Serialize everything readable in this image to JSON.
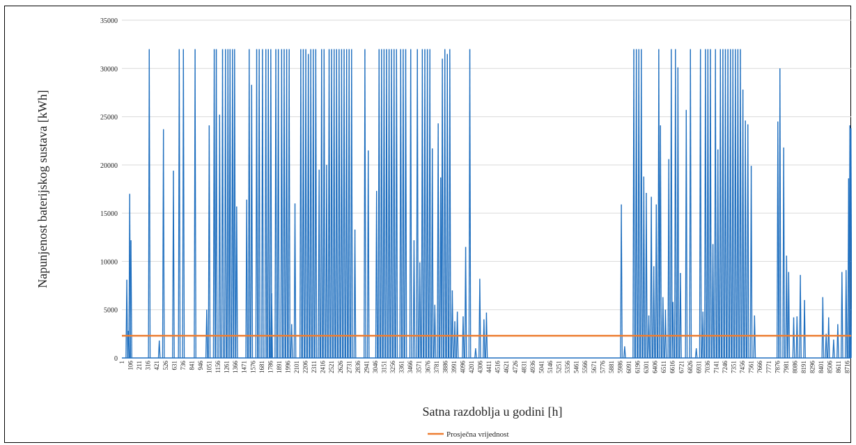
{
  "chart_data": {
    "type": "line",
    "ylabel": "Napunjenost baterijskog sustava [kWh]",
    "xlabel": "Satna razdoblja u godini [h]",
    "ylim": [
      0,
      35000
    ],
    "yticks": [
      0,
      5000,
      10000,
      15000,
      20000,
      25000,
      30000,
      35000
    ],
    "xlim": [
      1,
      8760
    ],
    "xticks": [
      1,
      106,
      211,
      316,
      421,
      526,
      631,
      736,
      841,
      946,
      1051,
      1156,
      1261,
      1366,
      1471,
      1576,
      1681,
      1786,
      1891,
      1996,
      2101,
      2206,
      2311,
      2416,
      2521,
      2626,
      2731,
      2836,
      2941,
      3046,
      3151,
      3256,
      3361,
      3466,
      3571,
      3676,
      3781,
      3886,
      3991,
      4096,
      4201,
      4306,
      4411,
      4516,
      4621,
      4726,
      4831,
      4936,
      5041,
      5146,
      5251,
      5356,
      5461,
      5566,
      5671,
      5776,
      5881,
      5986,
      6091,
      6196,
      6301,
      6406,
      6511,
      6616,
      6721,
      6826,
      6931,
      7036,
      7141,
      7246,
      7351,
      7456,
      7561,
      7666,
      7771,
      7876,
      7981,
      8086,
      8191,
      8296,
      8401,
      8506,
      8611,
      8716
    ],
    "grid": true,
    "legend_position": "bottom",
    "series": [
      {
        "name": "",
        "color": "#1f6fbf",
        "spikes": [
          [
            60,
            8100
          ],
          [
            80,
            2800
          ],
          [
            95,
            17000
          ],
          [
            110,
            12200
          ],
          [
            330,
            32000
          ],
          [
            450,
            1800
          ],
          [
            500,
            23700
          ],
          [
            620,
            19400
          ],
          [
            690,
            32000
          ],
          [
            740,
            32000
          ],
          [
            880,
            32000
          ],
          [
            1020,
            5000
          ],
          [
            1050,
            24100
          ],
          [
            1110,
            32000
          ],
          [
            1135,
            32000
          ],
          [
            1175,
            25200
          ],
          [
            1210,
            32000
          ],
          [
            1245,
            32000
          ],
          [
            1275,
            32000
          ],
          [
            1300,
            32000
          ],
          [
            1330,
            32000
          ],
          [
            1355,
            32000
          ],
          [
            1380,
            15700
          ],
          [
            1500,
            16400
          ],
          [
            1530,
            32000
          ],
          [
            1560,
            28300
          ],
          [
            1620,
            32000
          ],
          [
            1650,
            32000
          ],
          [
            1690,
            32000
          ],
          [
            1730,
            32000
          ],
          [
            1760,
            32000
          ],
          [
            1790,
            32000
          ],
          [
            1800,
            6700
          ],
          [
            1850,
            32000
          ],
          [
            1880,
            32000
          ],
          [
            1920,
            32000
          ],
          [
            1950,
            32000
          ],
          [
            1980,
            32000
          ],
          [
            2010,
            32000
          ],
          [
            2040,
            3500
          ],
          [
            2080,
            16000
          ],
          [
            2150,
            32000
          ],
          [
            2180,
            32000
          ],
          [
            2210,
            32000
          ],
          [
            2240,
            31500
          ],
          [
            2270,
            32000
          ],
          [
            2300,
            32000
          ],
          [
            2330,
            32000
          ],
          [
            2370,
            19500
          ],
          [
            2400,
            32000
          ],
          [
            2430,
            32000
          ],
          [
            2460,
            20000
          ],
          [
            2490,
            32000
          ],
          [
            2520,
            32000
          ],
          [
            2550,
            32000
          ],
          [
            2580,
            32000
          ],
          [
            2610,
            32000
          ],
          [
            2640,
            32000
          ],
          [
            2670,
            32000
          ],
          [
            2700,
            32000
          ],
          [
            2730,
            32000
          ],
          [
            2760,
            32000
          ],
          [
            2800,
            13300
          ],
          [
            2920,
            32000
          ],
          [
            2960,
            21500
          ],
          [
            3060,
            17300
          ],
          [
            3090,
            32000
          ],
          [
            3120,
            32000
          ],
          [
            3150,
            32000
          ],
          [
            3180,
            32000
          ],
          [
            3210,
            32000
          ],
          [
            3240,
            32000
          ],
          [
            3270,
            32000
          ],
          [
            3300,
            32000
          ],
          [
            3350,
            32000
          ],
          [
            3380,
            32000
          ],
          [
            3410,
            32000
          ],
          [
            3470,
            32000
          ],
          [
            3510,
            12200
          ],
          [
            3550,
            32000
          ],
          [
            3580,
            9900
          ],
          [
            3610,
            32000
          ],
          [
            3640,
            32000
          ],
          [
            3670,
            32000
          ],
          [
            3700,
            32000
          ],
          [
            3730,
            21700
          ],
          [
            3760,
            5500
          ],
          [
            3800,
            24300
          ],
          [
            3830,
            18700
          ],
          [
            3850,
            31000
          ],
          [
            3880,
            32000
          ],
          [
            3910,
            31500
          ],
          [
            3940,
            32000
          ],
          [
            3970,
            7000
          ],
          [
            4000,
            3800
          ],
          [
            4030,
            4800
          ],
          [
            4100,
            4300
          ],
          [
            4130,
            11500
          ],
          [
            4180,
            32000
          ],
          [
            4250,
            1000
          ],
          [
            4300,
            8200
          ],
          [
            4350,
            4000
          ],
          [
            4380,
            4700
          ],
          [
            6000,
            15900
          ],
          [
            6040,
            1200
          ],
          [
            6150,
            32000
          ],
          [
            6180,
            32000
          ],
          [
            6210,
            32000
          ],
          [
            6240,
            32000
          ],
          [
            6270,
            18800
          ],
          [
            6300,
            17100
          ],
          [
            6330,
            4400
          ],
          [
            6360,
            16700
          ],
          [
            6390,
            9500
          ],
          [
            6420,
            15900
          ],
          [
            6450,
            32000
          ],
          [
            6470,
            24100
          ],
          [
            6500,
            6300
          ],
          [
            6530,
            5000
          ],
          [
            6570,
            20600
          ],
          [
            6600,
            32000
          ],
          [
            6620,
            5800
          ],
          [
            6650,
            32000
          ],
          [
            6680,
            30100
          ],
          [
            6710,
            8800
          ],
          [
            6780,
            25700
          ],
          [
            6830,
            32000
          ],
          [
            6900,
            1000
          ],
          [
            6950,
            32000
          ],
          [
            6980,
            4800
          ],
          [
            7010,
            32000
          ],
          [
            7040,
            32000
          ],
          [
            7070,
            32000
          ],
          [
            7100,
            11800
          ],
          [
            7130,
            32000
          ],
          [
            7160,
            21600
          ],
          [
            7190,
            32000
          ],
          [
            7220,
            32000
          ],
          [
            7250,
            32000
          ],
          [
            7280,
            32000
          ],
          [
            7310,
            32000
          ],
          [
            7340,
            32000
          ],
          [
            7370,
            32000
          ],
          [
            7400,
            32000
          ],
          [
            7430,
            32000
          ],
          [
            7460,
            27800
          ],
          [
            7490,
            24600
          ],
          [
            7520,
            24200
          ],
          [
            7560,
            19900
          ],
          [
            7600,
            4400
          ],
          [
            7880,
            24500
          ],
          [
            7905,
            30000
          ],
          [
            7950,
            21800
          ],
          [
            7985,
            10600
          ],
          [
            8010,
            8900
          ],
          [
            8070,
            4200
          ],
          [
            8110,
            4300
          ],
          [
            8150,
            8600
          ],
          [
            8200,
            6000
          ],
          [
            8420,
            6300
          ],
          [
            8460,
            2500
          ],
          [
            8490,
            4200
          ],
          [
            8550,
            1900
          ],
          [
            8600,
            3500
          ],
          [
            8650,
            8900
          ],
          [
            8700,
            9100
          ],
          [
            8730,
            18600
          ],
          [
            8745,
            24100
          ],
          [
            8758,
            23800
          ]
        ]
      },
      {
        "name": "Prosječna vrijednost",
        "color": "#ed7d31",
        "value": 2300
      }
    ]
  }
}
